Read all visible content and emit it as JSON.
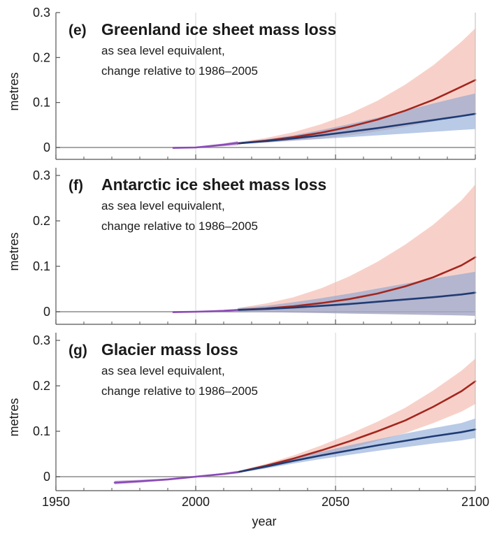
{
  "chart_data": [
    {
      "type": "line",
      "panel_label": "(e)",
      "title": "Greenland ice sheet mass loss",
      "subtitle_lines": [
        "as sea level equivalent,",
        "change relative to 1986–2005"
      ],
      "ylabel": "metres",
      "ylim": [
        -0.025,
        0.3
      ],
      "yticks": [
        0,
        0.1,
        0.2,
        0.3
      ],
      "ytick_labels": [
        "0",
        "0.1",
        "0.2",
        "0.3"
      ],
      "xlim": [
        1950,
        2100
      ],
      "historical": {
        "name": "historical",
        "color": "#8a4ab5",
        "x": [
          1992,
          2000,
          2005,
          2010,
          2015
        ],
        "y": [
          -0.001,
          0.0,
          0.003,
          0.006,
          0.01
        ],
        "lower": [
          -0.002,
          -0.001,
          0.001,
          0.003,
          0.005
        ],
        "upper": [
          0.0,
          0.001,
          0.005,
          0.009,
          0.014
        ]
      },
      "series": [
        {
          "name": "high",
          "line_color": "#a3261e",
          "band_color": "#f2b8ac",
          "x": [
            2015,
            2025,
            2035,
            2045,
            2055,
            2065,
            2075,
            2085,
            2095,
            2100
          ],
          "y": [
            0.009,
            0.015,
            0.023,
            0.033,
            0.046,
            0.062,
            0.082,
            0.106,
            0.135,
            0.15
          ],
          "lower": [
            0.007,
            0.011,
            0.015,
            0.02,
            0.027,
            0.036,
            0.046,
            0.058,
            0.07,
            0.078
          ],
          "upper": [
            0.012,
            0.021,
            0.034,
            0.052,
            0.075,
            0.104,
            0.14,
            0.183,
            0.235,
            0.265
          ]
        },
        {
          "name": "low",
          "line_color": "#1f3b73",
          "band_color": "#7d9fd1",
          "x": [
            2015,
            2025,
            2035,
            2045,
            2055,
            2065,
            2075,
            2085,
            2095,
            2100
          ],
          "y": [
            0.009,
            0.014,
            0.02,
            0.027,
            0.035,
            0.043,
            0.052,
            0.061,
            0.07,
            0.075
          ],
          "lower": [
            0.008,
            0.011,
            0.015,
            0.019,
            0.023,
            0.027,
            0.031,
            0.035,
            0.039,
            0.041
          ],
          "upper": [
            0.011,
            0.018,
            0.027,
            0.039,
            0.052,
            0.066,
            0.082,
            0.098,
            0.113,
            0.12
          ]
        }
      ]
    },
    {
      "type": "line",
      "panel_label": "(f)",
      "title": "Antarctic ice sheet mass loss",
      "subtitle_lines": [
        "as sea level equivalent,",
        "change relative to 1986–2005"
      ],
      "ylabel": "metres",
      "ylim": [
        -0.01,
        0.3
      ],
      "yticks": [
        0,
        0.1,
        0.2,
        0.3
      ],
      "ytick_labels": [
        "0",
        "0.1",
        "0.2",
        "0.3"
      ],
      "xlim": [
        1950,
        2100
      ],
      "historical": {
        "name": "historical",
        "color": "#8a4ab5",
        "x": [
          1992,
          2000,
          2005,
          2010,
          2015
        ],
        "y": [
          -0.001,
          0.0,
          0.001,
          0.002,
          0.004
        ],
        "lower": [
          -0.002,
          -0.001,
          0.0,
          0.001,
          0.002
        ],
        "upper": [
          0.0,
          0.001,
          0.002,
          0.004,
          0.006
        ]
      },
      "series": [
        {
          "name": "high",
          "line_color": "#a3261e",
          "band_color": "#f2b8ac",
          "x": [
            2015,
            2025,
            2035,
            2045,
            2055,
            2065,
            2075,
            2085,
            2095,
            2100
          ],
          "y": [
            0.004,
            0.007,
            0.012,
            0.019,
            0.028,
            0.04,
            0.056,
            0.076,
            0.102,
            0.12
          ],
          "lower": [
            0.0,
            -0.001,
            -0.002,
            -0.003,
            -0.004,
            -0.005,
            -0.006,
            -0.007,
            -0.008,
            -0.009
          ],
          "upper": [
            0.008,
            0.018,
            0.032,
            0.052,
            0.078,
            0.11,
            0.148,
            0.192,
            0.245,
            0.28
          ]
        },
        {
          "name": "low",
          "line_color": "#1f3b73",
          "band_color": "#7d9fd1",
          "x": [
            2015,
            2025,
            2035,
            2045,
            2055,
            2065,
            2075,
            2085,
            2095,
            2100
          ],
          "y": [
            0.004,
            0.006,
            0.009,
            0.013,
            0.017,
            0.022,
            0.027,
            0.032,
            0.038,
            0.042
          ],
          "lower": [
            0.0,
            -0.001,
            -0.002,
            -0.003,
            -0.004,
            -0.005,
            -0.006,
            -0.007,
            -0.008,
            -0.009
          ],
          "upper": [
            0.008,
            0.013,
            0.021,
            0.03,
            0.04,
            0.051,
            0.062,
            0.073,
            0.083,
            0.088
          ]
        }
      ]
    },
    {
      "type": "line",
      "panel_label": "(g)",
      "title": "Glacier mass loss",
      "subtitle_lines": [
        "as sea level equivalent,",
        "change relative to 1986–2005"
      ],
      "ylabel": "metres",
      "ylim": [
        -0.03,
        0.3
      ],
      "yticks": [
        0,
        0.1,
        0.2,
        0.3
      ],
      "ytick_labels": [
        "0",
        "0.1",
        "0.2",
        "0.3"
      ],
      "xlim": [
        1950,
        2100
      ],
      "xticks": [
        1950,
        2000,
        2050,
        2100
      ],
      "xtick_labels": [
        "1950",
        "2000",
        "2050",
        "2100"
      ],
      "xlabel": "year",
      "historical": {
        "name": "historical",
        "color": "#8a4ab5",
        "x": [
          1971,
          1980,
          1990,
          2000,
          2010,
          2015
        ],
        "y": [
          -0.013,
          -0.01,
          -0.006,
          0.0,
          0.006,
          0.01
        ],
        "lower": [
          -0.017,
          -0.013,
          -0.008,
          -0.002,
          0.004,
          0.007
        ],
        "upper": [
          -0.009,
          -0.007,
          -0.004,
          0.002,
          0.008,
          0.013
        ]
      },
      "series": [
        {
          "name": "high",
          "line_color": "#a3261e",
          "band_color": "#f2b8ac",
          "x": [
            2015,
            2025,
            2035,
            2045,
            2055,
            2065,
            2075,
            2085,
            2095,
            2100
          ],
          "y": [
            0.01,
            0.024,
            0.04,
            0.058,
            0.078,
            0.1,
            0.124,
            0.154,
            0.188,
            0.21
          ],
          "lower": [
            0.008,
            0.02,
            0.033,
            0.047,
            0.062,
            0.079,
            0.096,
            0.118,
            0.143,
            0.16
          ],
          "upper": [
            0.012,
            0.028,
            0.047,
            0.069,
            0.094,
            0.121,
            0.152,
            0.19,
            0.233,
            0.26
          ]
        },
        {
          "name": "low",
          "line_color": "#1f3b73",
          "band_color": "#7d9fd1",
          "x": [
            2015,
            2025,
            2035,
            2045,
            2055,
            2065,
            2075,
            2085,
            2095,
            2100
          ],
          "y": [
            0.01,
            0.022,
            0.035,
            0.047,
            0.058,
            0.069,
            0.079,
            0.089,
            0.098,
            0.104
          ],
          "lower": [
            0.008,
            0.018,
            0.029,
            0.039,
            0.048,
            0.057,
            0.065,
            0.073,
            0.08,
            0.085
          ],
          "upper": [
            0.012,
            0.026,
            0.041,
            0.055,
            0.069,
            0.082,
            0.095,
            0.107,
            0.118,
            0.128
          ]
        }
      ]
    }
  ]
}
